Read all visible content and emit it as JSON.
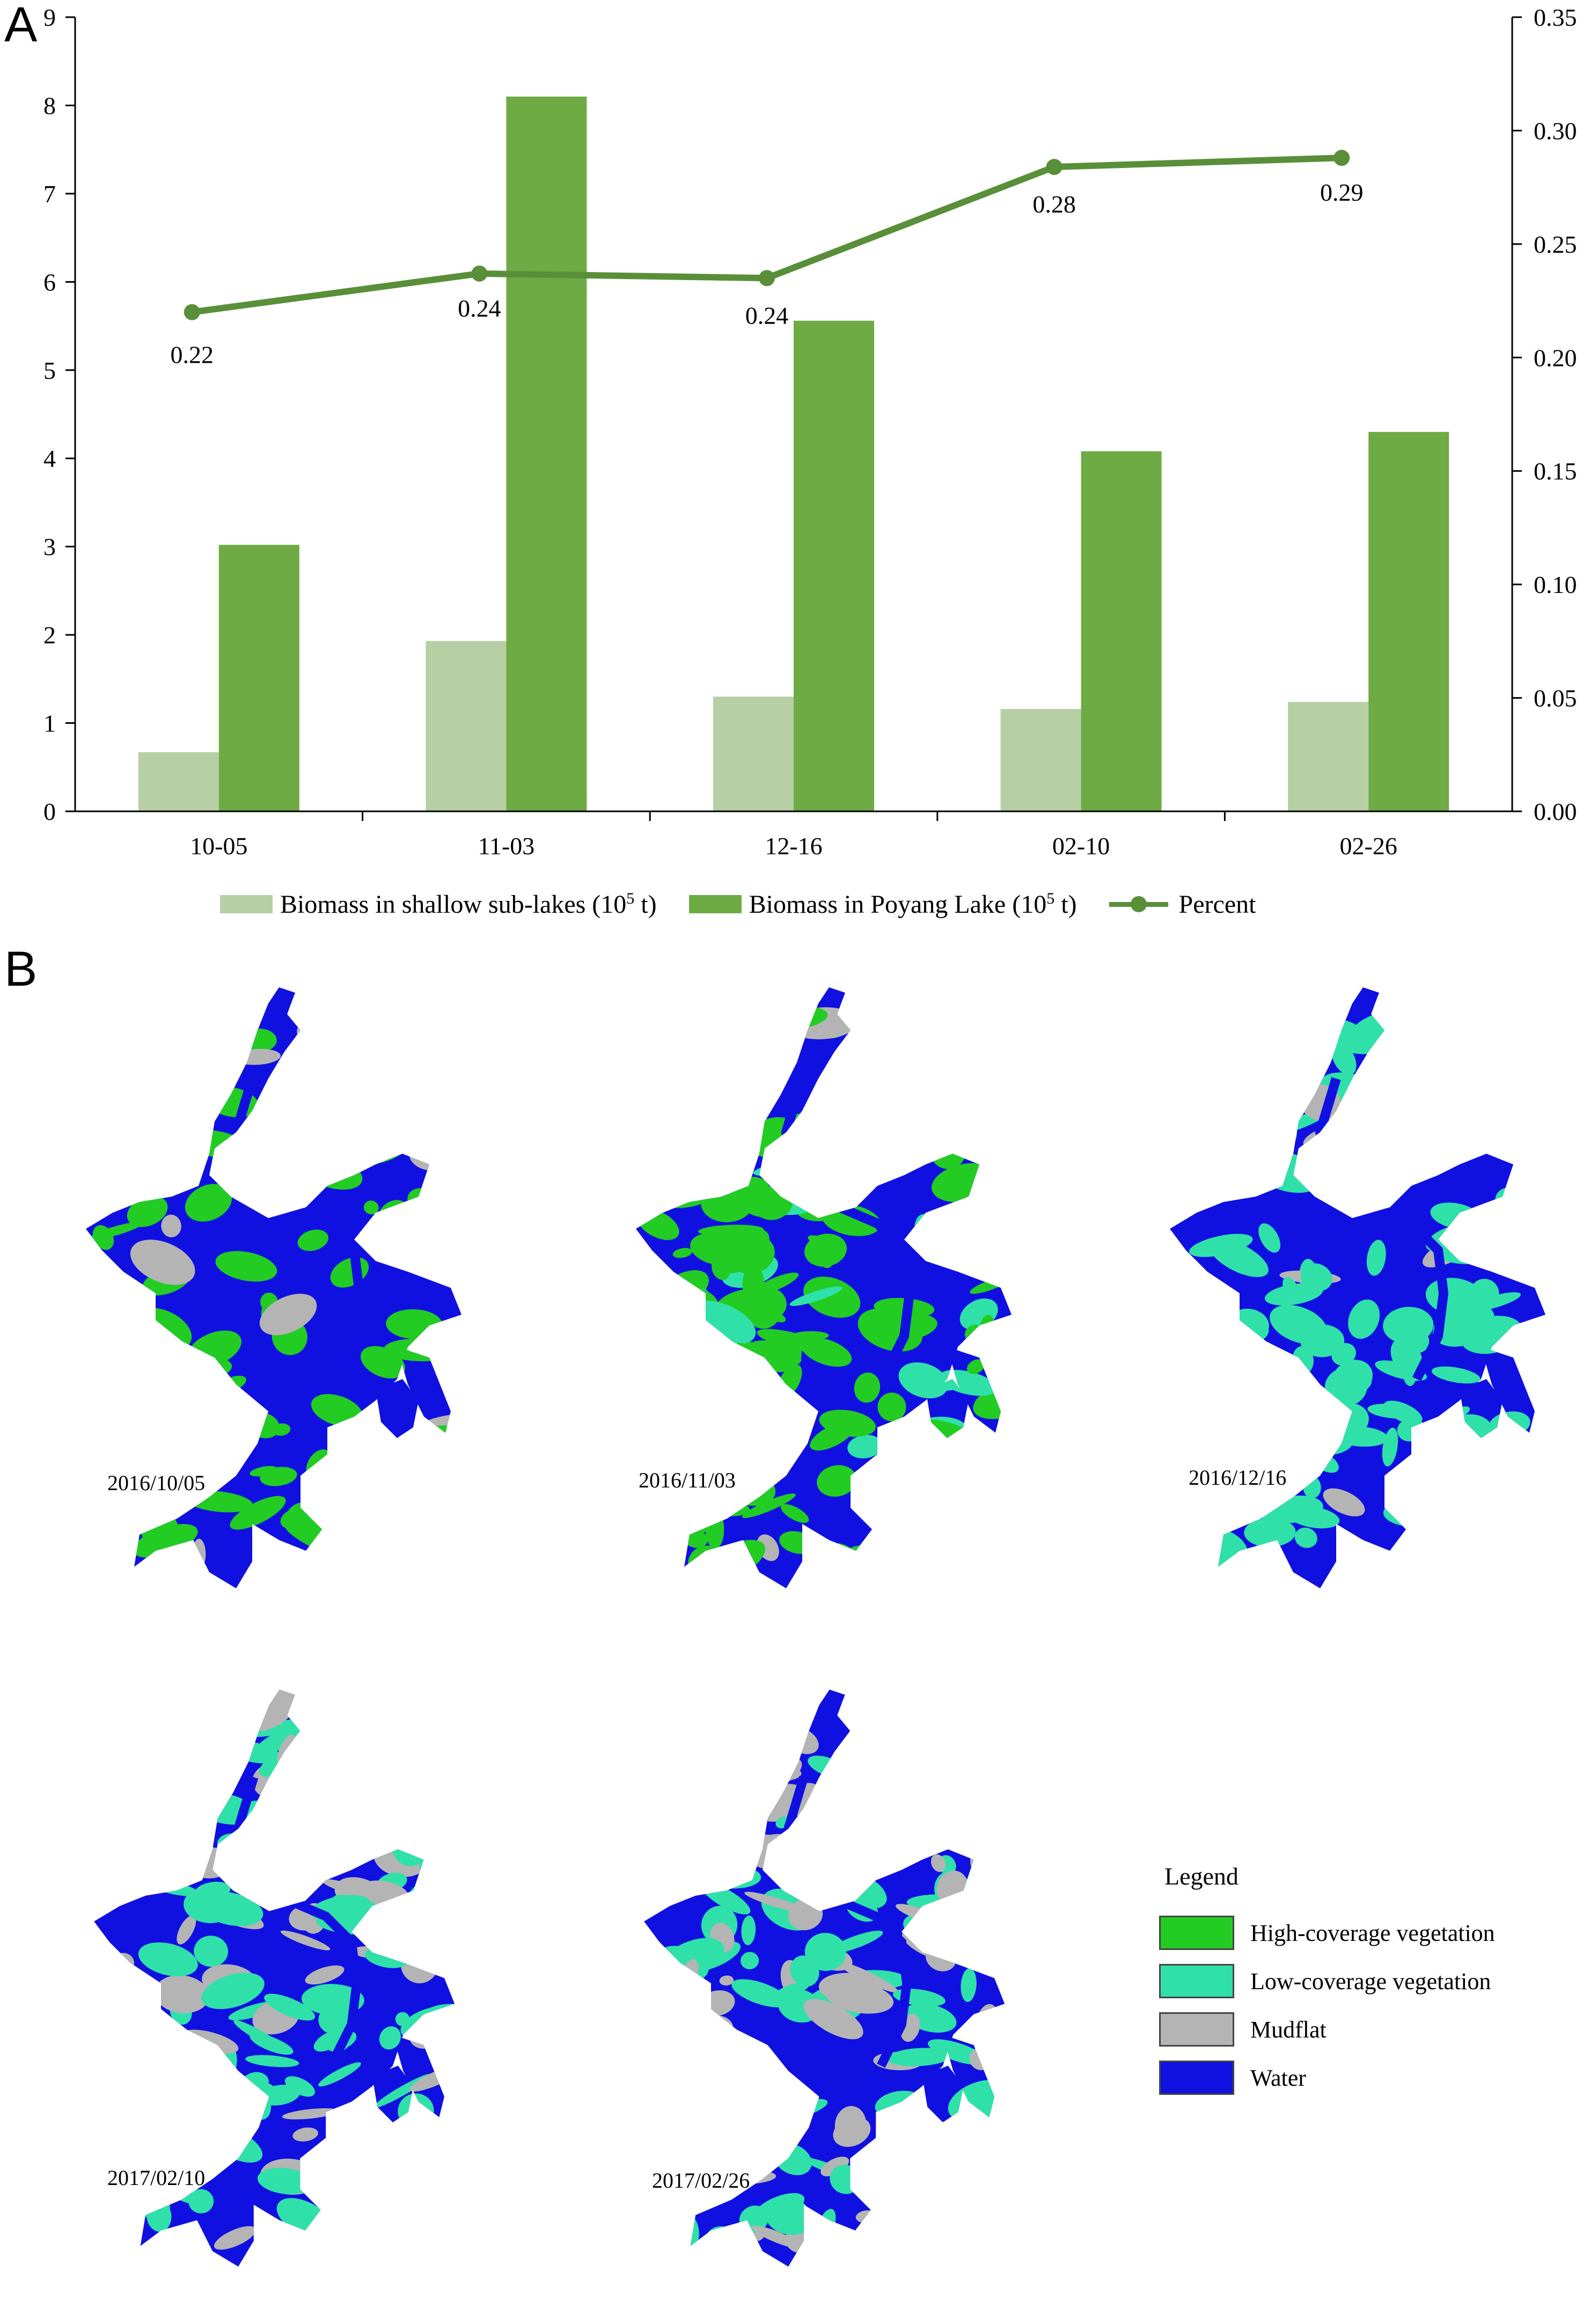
{
  "panel_labels": {
    "a": "A",
    "b": "B"
  },
  "colors": {
    "shallow_bar": "#b6cfa4",
    "poyang_bar": "#6fab45",
    "percent_line": "#5a8f3a",
    "high_veg": "#22cc22",
    "low_veg": "#2fe0a8",
    "mudflat": "#b4b4b4",
    "water": "#1010e0"
  },
  "chart_data": {
    "type": "bar",
    "categories": [
      "10-05",
      "11-03",
      "12-16",
      "02-10",
      "02-26"
    ],
    "series": [
      {
        "name": "Biomass in shallow sub-lakes",
        "kind": "bar",
        "axis": "left",
        "values": [
          0.67,
          1.93,
          1.3,
          1.16,
          1.24
        ]
      },
      {
        "name": "Biomass in Poyang Lake",
        "kind": "bar",
        "axis": "left",
        "values": [
          3.02,
          8.1,
          5.56,
          4.08,
          4.3
        ]
      },
      {
        "name": "Percent",
        "kind": "line",
        "axis": "right",
        "values": [
          0.22,
          0.237,
          0.235,
          0.284,
          0.288
        ],
        "labels": [
          "0.22",
          "0.24",
          "0.24",
          "0.28",
          "0.29"
        ]
      }
    ],
    "y_left": {
      "min": 0,
      "max": 9,
      "ticks": [
        "0",
        "1",
        "2",
        "3",
        "4",
        "5",
        "6",
        "7",
        "8",
        "9"
      ]
    },
    "y_right": {
      "min": 0,
      "max": 0.35,
      "ticks": [
        "0.00",
        "0.05",
        "0.10",
        "0.15",
        "0.20",
        "0.25",
        "0.30",
        "0.35"
      ]
    },
    "legend": {
      "position": "bottom",
      "shallow_text": "Biomass in shallow sub-lakes (10",
      "poyang_text": "Biomass in Poyang Lake (10",
      "unit_exp": "5",
      "unit_tail": " t)",
      "percent_text": "Percent"
    }
  },
  "maps": [
    {
      "date": "2016/10/05",
      "mix": [
        0.35,
        0.0,
        0.07
      ]
    },
    {
      "date": "2016/11/03",
      "mix": [
        0.5,
        0.08,
        0.02
      ]
    },
    {
      "date": "2016/12/16",
      "mix": [
        0.0,
        0.5,
        0.08
      ]
    },
    {
      "date": "2017/02/10",
      "mix": [
        0.0,
        0.3,
        0.35
      ]
    },
    {
      "date": "2017/02/26",
      "mix": [
        0.0,
        0.3,
        0.35
      ]
    }
  ],
  "map_legend": {
    "title": "Legend",
    "items": [
      {
        "label": "High-coverage vegetation",
        "color": "#22cc22"
      },
      {
        "label": "Low-coverage vegetation",
        "color": "#2fe0a8"
      },
      {
        "label": "Mudflat",
        "color": "#b4b4b4"
      },
      {
        "label": "Water",
        "color": "#1010e0"
      }
    ]
  }
}
